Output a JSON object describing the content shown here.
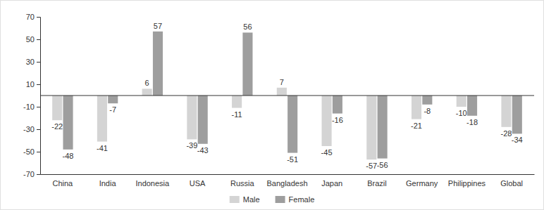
{
  "chart_data": {
    "type": "bar",
    "categories": [
      "China",
      "India",
      "Indonesia",
      "USA",
      "Russia",
      "Bangladesh",
      "Japan",
      "Brazil",
      "Germany",
      "Philippines",
      "Global"
    ],
    "series": [
      {
        "name": "Male",
        "color": "#d4d4d4",
        "values": [
          -22,
          -41,
          6,
          -39,
          -11,
          7,
          -45,
          -57,
          -21,
          -10,
          -28
        ]
      },
      {
        "name": "Female",
        "color": "#9e9e9e",
        "values": [
          -48,
          -7,
          57,
          -43,
          56,
          -51,
          -16,
          -56,
          -8,
          -18,
          -34
        ]
      }
    ],
    "ylim": [
      -70,
      70
    ],
    "yticks": [
      -70,
      -50,
      -30,
      -10,
      10,
      30,
      50,
      70
    ],
    "grid": false,
    "legend": "bottom",
    "data_labels": true
  }
}
